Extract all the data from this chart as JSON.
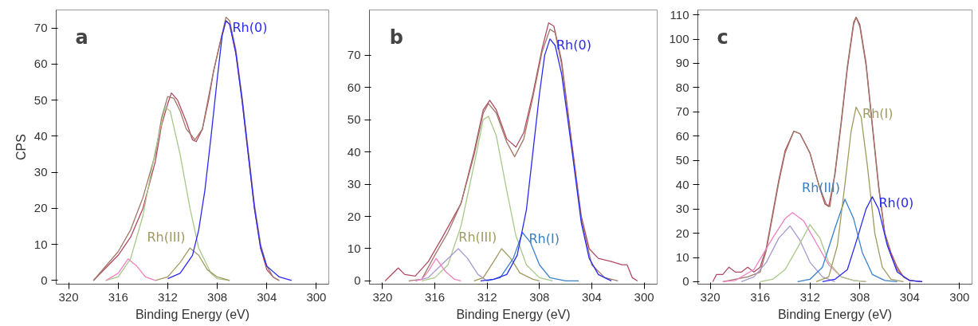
{
  "chart_data": [
    {
      "type": "line",
      "title": "a",
      "xlabel": "Binding Energy (eV)",
      "ylabel": "CPS",
      "xlim": [
        321,
        299
      ],
      "xticks": [
        320,
        316,
        312,
        308,
        304,
        300
      ],
      "ylim": [
        -1,
        75
      ],
      "yticks": [
        0,
        10,
        20,
        30,
        40,
        50,
        60,
        70
      ],
      "series": [
        {
          "color": "#b04a62",
          "x": [
            318,
            316,
            315,
            314,
            313,
            312.5,
            312,
            311.7,
            311.2,
            310.5,
            310,
            309.7,
            309.2,
            308.7,
            308.3,
            307.7,
            307.3,
            307,
            306.5,
            306,
            305.5,
            305,
            304.5,
            304,
            303.5,
            303
          ],
          "values": [
            0,
            7,
            12,
            20,
            33,
            43,
            49,
            52,
            50,
            44,
            39,
            38.5,
            42,
            50,
            58,
            67,
            72,
            71,
            63,
            50,
            35,
            20,
            9,
            3,
            1,
            0
          ]
        },
        {
          "color": "#a07868",
          "x": [
            318,
            316,
            315,
            314,
            313,
            312.5,
            312,
            311.5,
            311,
            310.5,
            309.8,
            309.2,
            308.7,
            308.3,
            307.7,
            307.3,
            307,
            306.5,
            306,
            305.5,
            305,
            304.5,
            304,
            303.5,
            303
          ],
          "values": [
            0,
            8,
            14,
            23,
            35,
            45,
            51,
            50.5,
            47,
            42,
            39,
            42,
            51,
            58,
            67,
            73,
            72,
            64,
            51,
            36,
            21,
            10,
            4,
            1,
            0
          ]
        },
        {
          "color": "#a8c888",
          "x": [
            317,
            316,
            315,
            314,
            313,
            312.2,
            311.8,
            311,
            310.2,
            309.5,
            308.5,
            308,
            307
          ],
          "values": [
            0,
            1,
            6,
            18,
            36,
            48,
            47,
            35,
            20,
            9,
            2,
            0.5,
            0
          ]
        },
        {
          "name": "Rh(III)",
          "color": "#a09a60",
          "x": [
            313,
            312,
            311,
            310.2,
            309.5,
            308.8,
            308,
            307
          ],
          "values": [
            0,
            1,
            5,
            9,
            7,
            3,
            1,
            0
          ]
        },
        {
          "color": "#f080c0",
          "x": [
            317,
            316,
            315.2,
            314.5,
            313.8,
            313
          ],
          "values": [
            0,
            2,
            6,
            4,
            1,
            0
          ]
        },
        {
          "name": "Rh(0)",
          "color": "#2a2af0",
          "x": [
            312,
            311,
            310,
            309.5,
            309,
            308.5,
            308,
            307.6,
            307.3,
            307,
            306.5,
            306,
            305.5,
            305,
            304.5,
            304,
            303,
            302
          ],
          "values": [
            0.5,
            2,
            7,
            14,
            25,
            40,
            56,
            68,
            72,
            71,
            63,
            50,
            35,
            20,
            9,
            4,
            1,
            0
          ]
        }
      ]
    },
    {
      "type": "line",
      "title": "b",
      "xlabel": "Binding Energy (eV)",
      "xlim": [
        321,
        299
      ],
      "xticks": [
        320,
        316,
        312,
        308,
        304,
        300
      ],
      "ylim": [
        -1,
        84
      ],
      "yticks": [
        0,
        10,
        20,
        30,
        40,
        50,
        60,
        70
      ],
      "series": [
        {
          "color": "#b04a62",
          "x": [
            319.8,
            318.8,
            318.3,
            317.5,
            316.5,
            315.5,
            314,
            313,
            312.3,
            311.8,
            311.3,
            310.5,
            309.8,
            309.2,
            308.5,
            307.8,
            307.3,
            306.9,
            306.3,
            305.5,
            304.8,
            304.2,
            303.5,
            302.5,
            301.7,
            301.3,
            300.9,
            300.5
          ],
          "values": [
            0,
            4,
            2,
            1.5,
            6,
            13,
            24,
            40,
            53,
            56,
            53,
            44,
            41.5,
            46,
            58,
            72,
            80,
            79,
            68,
            42,
            20,
            10,
            7,
            6,
            5,
            5,
            1,
            0
          ]
        },
        {
          "color": "#a07868",
          "x": [
            318,
            317,
            316,
            315,
            314,
            313,
            312.3,
            311.9,
            311.3,
            310.5,
            309.9,
            309.2,
            308.5,
            307.8,
            307.2,
            306.8,
            306.3,
            305.5,
            304.8,
            304,
            303,
            302
          ],
          "values": [
            0,
            0.5,
            8,
            15,
            24,
            39,
            52,
            55,
            52,
            43,
            38.5,
            44,
            57,
            71,
            78,
            77,
            67,
            41,
            19,
            5,
            1,
            0
          ]
        },
        {
          "color": "#a8c888",
          "x": [
            317,
            316,
            315,
            314,
            313,
            312.3,
            311.9,
            311.3,
            310.5,
            309.8,
            309,
            308,
            307
          ],
          "values": [
            0,
            1,
            5,
            17,
            36,
            50,
            51,
            45,
            28,
            14,
            5,
            1,
            0
          ]
        },
        {
          "color": "#a898d0",
          "x": [
            317.5,
            316.5,
            315.5,
            314.2,
            313.5,
            312.7,
            312
          ],
          "values": [
            0,
            1,
            5,
            10,
            7,
            2,
            0
          ]
        },
        {
          "color": "#f080c0",
          "x": [
            317.5,
            317,
            316.5,
            315.9,
            315.2,
            314.5,
            314
          ],
          "values": [
            0,
            0.5,
            3,
            7,
            3,
            0.5,
            0
          ]
        },
        {
          "name": "Rh(III)",
          "color": "#a09a60",
          "x": [
            313,
            312.3,
            311.5,
            310.9,
            310.2,
            309.5,
            308.5,
            308
          ],
          "values": [
            0,
            1,
            6,
            10,
            7,
            2.5,
            0.5,
            0
          ]
        },
        {
          "name": "Rh(I)",
          "color": "#3a80c8",
          "x": [
            312,
            311,
            310,
            309.3,
            308.7,
            308,
            307.2,
            306,
            305
          ],
          "values": [
            0,
            1,
            7,
            15,
            12,
            5,
            1,
            0,
            0
          ]
        },
        {
          "name": "Rh(0)",
          "color": "#2a2af0",
          "x": [
            312.5,
            311.5,
            310.5,
            309.7,
            309,
            308.5,
            308,
            307.6,
            307.2,
            306.8,
            306.3,
            305.5,
            304.8,
            304.2,
            303.5,
            302.5
          ],
          "values": [
            0,
            0.5,
            2,
            8,
            22,
            40,
            58,
            70,
            75,
            73,
            64,
            40,
            18,
            7,
            2,
            0
          ]
        }
      ]
    },
    {
      "type": "line",
      "title": "c",
      "xlabel": "Binding Energy (eV)",
      "xlim": [
        321,
        299
      ],
      "xticks": [
        320,
        316,
        312,
        308,
        304,
        300
      ],
      "ylim": [
        -1,
        112
      ],
      "yticks": [
        0,
        10,
        20,
        30,
        40,
        50,
        60,
        70,
        80,
        90,
        100,
        110
      ],
      "series": [
        {
          "color": "#b04a62",
          "x": [
            319.8,
            319.5,
            319,
            318.5,
            318,
            317.5,
            317,
            316.5,
            316,
            315.5,
            315,
            314.5,
            314,
            313.3,
            312.8,
            312,
            311.3,
            310.8,
            310.5,
            310,
            309.5,
            309,
            308.5,
            308.3,
            308,
            307.5,
            307,
            306.5,
            306,
            305.5,
            305,
            304.5,
            304,
            303
          ],
          "values": [
            0,
            3,
            3,
            6,
            4,
            4,
            6,
            4,
            6,
            14,
            28,
            42,
            54,
            62,
            61,
            53,
            40,
            32,
            31,
            44,
            65,
            88,
            106,
            109,
            106,
            90,
            65,
            40,
            20,
            12,
            6,
            2,
            0.5,
            0
          ]
        },
        {
          "color": "#a07868",
          "x": [
            319,
            318,
            317,
            316,
            315.5,
            315,
            314.5,
            314,
            313.3,
            312.8,
            312,
            311.3,
            310.7,
            310.4,
            310,
            309.5,
            309,
            308.5,
            308.3,
            308,
            307.5,
            307,
            306.5,
            306,
            305.5,
            305,
            304.5,
            304,
            303
          ],
          "values": [
            0,
            1,
            2,
            4,
            13,
            27,
            41,
            53,
            62,
            61,
            53,
            40,
            32,
            31,
            45,
            66,
            89,
            107,
            109,
            105,
            89,
            64,
            39,
            20,
            11,
            5,
            2,
            0.5,
            0
          ]
        },
        {
          "color": "#f080c0",
          "x": [
            319,
            318,
            316.5,
            315,
            314,
            313.4,
            312.5,
            311.5,
            310.5,
            309.5,
            308.5,
            307.5
          ],
          "values": [
            0,
            0.5,
            5,
            18,
            26,
            28.5,
            25,
            16,
            7,
            2,
            0.5,
            0
          ]
        },
        {
          "color": "#a898d0",
          "x": [
            317.5,
            316.5,
            315.5,
            314.5,
            313.6,
            312.8,
            312,
            311,
            310
          ],
          "values": [
            0,
            2,
            8,
            18,
            23,
            17,
            8,
            2,
            0
          ]
        },
        {
          "color": "#a8c888",
          "x": [
            316,
            315,
            314,
            313,
            312,
            311.2,
            310.5,
            309.5,
            308.5,
            307.5
          ],
          "values": [
            0,
            1,
            5,
            14,
            23.5,
            18,
            8,
            2,
            0.5,
            0
          ]
        },
        {
          "name": "Rh(III)",
          "color": "#3a80c8",
          "x": [
            313,
            312,
            311,
            310,
            309.2,
            308.5,
            307.8,
            307,
            306,
            305
          ],
          "values": [
            0,
            1,
            6,
            22,
            34,
            26,
            12,
            3,
            0.5,
            0
          ]
        },
        {
          "name": "Rh(I)",
          "color": "#a09a60",
          "x": [
            311.5,
            310.5,
            309.8,
            309.2,
            308.7,
            308.3,
            307.9,
            307.4,
            306.8,
            306.2,
            305.5,
            304.5
          ],
          "values": [
            0,
            2,
            15,
            40,
            62,
            72,
            68,
            48,
            20,
            6,
            1,
            0
          ]
        },
        {
          "name": "Rh(0)",
          "color": "#2a2af0",
          "x": [
            311,
            310,
            309,
            308.2,
            307.5,
            307,
            306.5,
            305.8,
            305,
            304,
            303
          ],
          "values": [
            0,
            1,
            5,
            18,
            30,
            35,
            30,
            15,
            4,
            0.5,
            0
          ]
        }
      ]
    }
  ]
}
